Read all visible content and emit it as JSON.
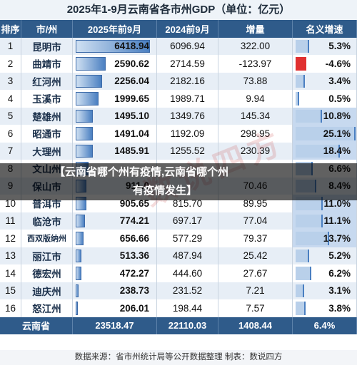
{
  "title": "2025年1-9月云南省各市州GDP（单位：亿元）",
  "headers": [
    "排序",
    "市/州",
    "2025年前9月",
    "2024前9月",
    "增量",
    "名义增速"
  ],
  "chart_data": {
    "type": "table",
    "title": "2025年1-9月云南省各市州GDP（单位：亿元）",
    "columns": [
      "排序",
      "市/州",
      "2025年前9月",
      "2024前9月",
      "增量",
      "名义增速"
    ],
    "rows": [
      {
        "rank": "1",
        "city": "昆明市",
        "gdp2025": "6418.94",
        "gdp2024": "6096.94",
        "inc": "322.00",
        "rate": "5.3%",
        "rate_num": 5.3,
        "g25": 6418.94
      },
      {
        "rank": "2",
        "city": "曲靖市",
        "gdp2025": "2590.62",
        "gdp2024": "2714.59",
        "inc": "-123.97",
        "rate": "-4.6%",
        "rate_num": -4.6,
        "g25": 2590.62
      },
      {
        "rank": "3",
        "city": "红河州",
        "gdp2025": "2256.04",
        "gdp2024": "2182.16",
        "inc": "73.88",
        "rate": "3.4%",
        "rate_num": 3.4,
        "g25": 2256.04
      },
      {
        "rank": "4",
        "city": "玉溪市",
        "gdp2025": "1999.65",
        "gdp2024": "1989.71",
        "inc": "9.94",
        "rate": "0.5%",
        "rate_num": 0.5,
        "g25": 1999.65
      },
      {
        "rank": "5",
        "city": "楚雄州",
        "gdp2025": "1495.10",
        "gdp2024": "1349.76",
        "inc": "145.34",
        "rate": "10.8%",
        "rate_num": 10.8,
        "g25": 1495.1
      },
      {
        "rank": "6",
        "city": "昭通市",
        "gdp2025": "1491.04",
        "gdp2024": "1192.09",
        "inc": "298.95",
        "rate": "25.1%",
        "rate_num": 25.1,
        "g25": 1491.04
      },
      {
        "rank": "7",
        "city": "大理州",
        "gdp2025": "1485.91",
        "gdp2024": "1255.52",
        "inc": "230.39",
        "rate": "18.4%",
        "rate_num": 18.4,
        "g25": 1485.91
      },
      {
        "rank": "8",
        "city": "文山州",
        "gdp2025": "",
        "gdp2024": "",
        "inc": "",
        "rate": "6.6%",
        "rate_num": 6.6,
        "g25": 1100
      },
      {
        "rank": "9",
        "city": "保山市",
        "gdp2025": "911.0",
        "gdp2024": "",
        "inc": "70.46",
        "rate": "8.4%",
        "rate_num": 8.4,
        "g25": 911.0
      },
      {
        "rank": "10",
        "city": "普洱市",
        "gdp2025": "905.65",
        "gdp2024": "815.70",
        "inc": "89.95",
        "rate": "11.0%",
        "rate_num": 11.0,
        "g25": 905.65
      },
      {
        "rank": "11",
        "city": "临沧市",
        "gdp2025": "774.21",
        "gdp2024": "697.17",
        "inc": "77.04",
        "rate": "11.1%",
        "rate_num": 11.1,
        "g25": 774.21
      },
      {
        "rank": "12",
        "city": "西双版纳州",
        "gdp2025": "656.66",
        "gdp2024": "577.29",
        "inc": "79.37",
        "rate": "13.7%",
        "rate_num": 13.7,
        "g25": 656.66
      },
      {
        "rank": "13",
        "city": "丽江市",
        "gdp2025": "513.36",
        "gdp2024": "487.94",
        "inc": "25.42",
        "rate": "5.2%",
        "rate_num": 5.2,
        "g25": 513.36
      },
      {
        "rank": "14",
        "city": "德宏州",
        "gdp2025": "472.27",
        "gdp2024": "444.60",
        "inc": "27.67",
        "rate": "6.2%",
        "rate_num": 6.2,
        "g25": 472.27
      },
      {
        "rank": "15",
        "city": "迪庆州",
        "gdp2025": "238.73",
        "gdp2024": "231.52",
        "inc": "7.21",
        "rate": "3.1%",
        "rate_num": 3.1,
        "g25": 238.73
      },
      {
        "rank": "16",
        "city": "怒江州",
        "gdp2025": "206.01",
        "gdp2024": "198.44",
        "inc": "7.57",
        "rate": "3.8%",
        "rate_num": 3.8,
        "g25": 206.01
      }
    ],
    "total": {
      "label": "云南省",
      "gdp2025": "23518.47",
      "gdp2024": "22110.03",
      "inc": "1408.44",
      "rate": "6.4%"
    }
  },
  "source_note": "数据来源：省市州统计局等公开数据整理      制表：数说四方",
  "overlay_line1": "【云南省哪个州有疫情,云南省哪个州",
  "overlay_line2": "有疫情发生】",
  "watermark": "数说四方",
  "colors": {
    "header": "#2f5b8a",
    "bar": "#4a7fc1",
    "negative": "#e03030"
  }
}
